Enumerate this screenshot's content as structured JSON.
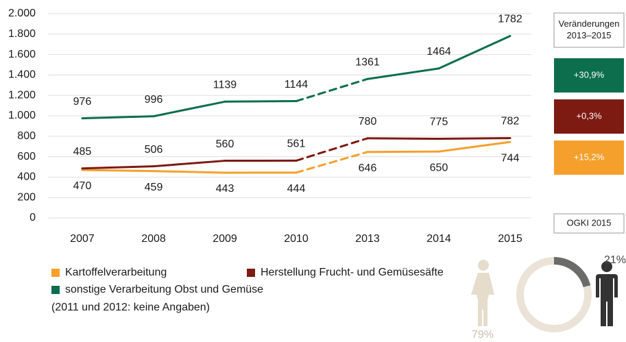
{
  "chart_data": [
    {
      "type": "line",
      "categories": [
        "2007",
        "2008",
        "2009",
        "2010",
        "2013",
        "2014",
        "2015"
      ],
      "ylim": [
        0,
        2000
      ],
      "yticks": [
        0,
        200,
        400,
        600,
        800,
        {
          "value": 1000,
          "label": "1.000"
        },
        {
          "value": 1200,
          "label": "1.200"
        },
        {
          "value": 1400,
          "label": "1.400"
        },
        {
          "value": 1600,
          "label": "1.600"
        },
        {
          "value": 1800,
          "label": "1.800"
        },
        {
          "value": 2000,
          "label": "2.000"
        }
      ],
      "grid": true,
      "segment_styles": [
        "solid",
        "solid",
        "solid",
        "dashed",
        "solid",
        "solid"
      ],
      "change_title": "Veränderungen 2013–2015",
      "note": "(2011 und 2012: keine Angaben)",
      "series": [
        {
          "name": "Kartoffelverarbeitung",
          "color": "#f5a02c",
          "label_position": "below",
          "change_label": "+15,2%",
          "values": [
            470,
            459,
            443,
            444,
            646,
            650,
            744
          ]
        },
        {
          "name": "Herstellung Frucht- und Gemüsesäfte",
          "color": "#7d1a12",
          "label_position": "above",
          "change_label": "+0,3%",
          "values": [
            485,
            506,
            560,
            561,
            780,
            775,
            782
          ]
        },
        {
          "name": "sonstige Verarbeitung Obst und Gemüse",
          "color": "#0d6e4e",
          "label_position": "above",
          "change_label": "+30,9%",
          "values": [
            976,
            996,
            1139,
            1144,
            1361,
            1464,
            1782
          ]
        }
      ]
    },
    {
      "type": "pie",
      "title": "OGKI 2015",
      "values": [
        21,
        79
      ],
      "value_labels": [
        "21%",
        "79%"
      ],
      "colors": [
        "#6b6b69",
        "#ebe3d7"
      ]
    }
  ]
}
